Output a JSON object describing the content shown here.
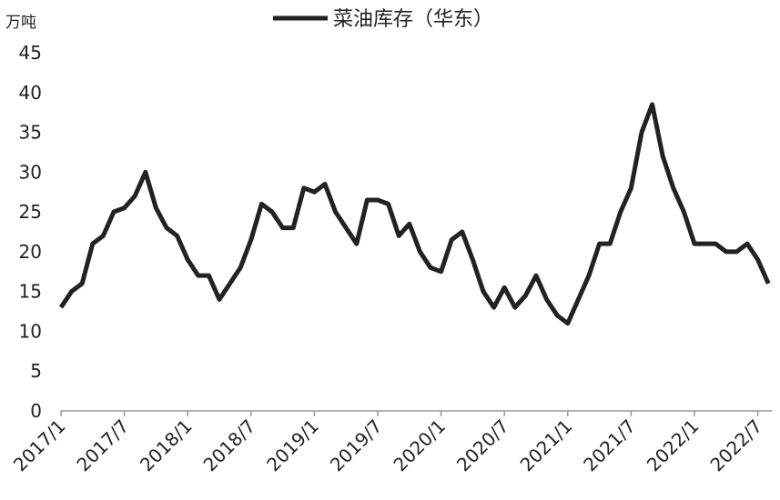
{
  "chart_data": {
    "type": "line",
    "y_unit": "万吨",
    "categories": [
      "2017/1",
      null,
      null,
      null,
      null,
      null,
      "2017/7",
      null,
      null,
      null,
      null,
      null,
      "2018/1",
      null,
      null,
      null,
      null,
      null,
      "2018/7",
      null,
      null,
      null,
      null,
      null,
      "2019/1",
      null,
      null,
      null,
      null,
      null,
      "2019/7",
      null,
      null,
      null,
      null,
      null,
      "2020/1",
      null,
      null,
      null,
      null,
      null,
      "2020/7",
      null,
      null,
      null,
      null,
      null,
      "2021/1",
      null,
      null,
      null,
      null,
      null,
      "2021/7",
      null,
      null,
      null,
      null,
      null,
      "2022/1",
      null,
      null,
      null,
      null,
      null,
      "2022/7",
      null
    ],
    "series": [
      {
        "name": "菜油库存（华东）",
        "color": "#222222",
        "values": [
          13,
          15,
          16,
          21,
          22,
          25,
          25.5,
          27,
          30,
          25.5,
          23,
          22,
          19,
          17,
          17,
          14,
          16,
          18,
          21.5,
          26,
          25,
          23,
          23,
          28,
          27.5,
          28.5,
          25,
          23,
          21,
          26.5,
          26.5,
          26,
          22,
          23.5,
          20,
          18,
          17.5,
          21.5,
          22.5,
          19,
          15,
          13,
          15.5,
          13,
          14.5,
          17,
          14,
          12,
          11,
          14,
          17,
          21,
          21,
          25,
          28,
          35,
          38.5,
          32,
          28,
          25,
          21,
          21,
          21,
          20,
          20,
          21,
          19,
          16
        ]
      }
    ],
    "ylim": [
      0,
      45
    ],
    "yticks": [
      0,
      5,
      10,
      15,
      20,
      25,
      30,
      35,
      40,
      45
    ],
    "legend": "top"
  }
}
